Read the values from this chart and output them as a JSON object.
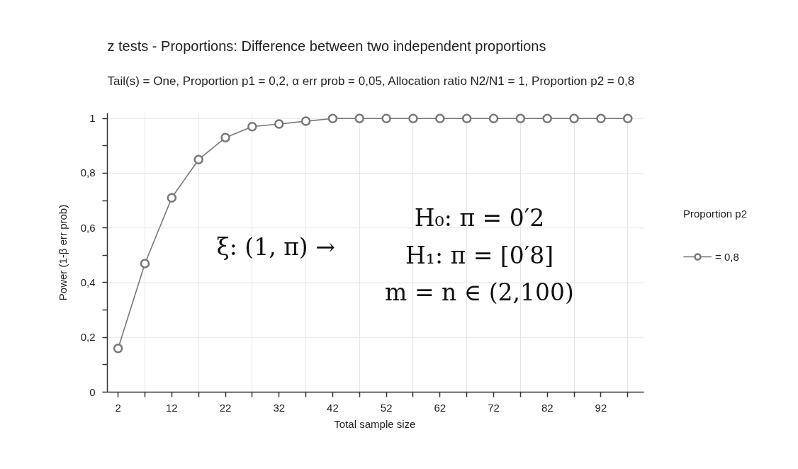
{
  "chart_data": {
    "type": "line",
    "title": "z tests - Proportions: Difference between two independent proportions",
    "subtitle": "Tail(s) = One, Proportion p1 = 0,2, α err prob = 0,05, Allocation ratio N2/N1 = 1, Proportion p2 = 0,8",
    "xlabel": "Total sample size",
    "ylabel": "Power (1-β err prob)",
    "legend_title": "Proportion p2",
    "annotations": [
      "ξ: (1, π) →",
      "H₀: π = 0′2",
      "H₁: π = [0′8]",
      "m = n ∈ (2,100)"
    ],
    "x": [
      2,
      7,
      12,
      17,
      22,
      27,
      32,
      37,
      42,
      47,
      52,
      57,
      62,
      67,
      72,
      77,
      82,
      87,
      92,
      97
    ],
    "series": [
      {
        "name": "= 0,8",
        "color": "#777777",
        "values": [
          0.16,
          0.47,
          0.71,
          0.85,
          0.93,
          0.97,
          0.98,
          0.99,
          1,
          1,
          1,
          1,
          1,
          1,
          1,
          1,
          1,
          1,
          1,
          1
        ]
      }
    ],
    "xlim": [
      0,
      100
    ],
    "xticks": [
      2,
      {
        "value": 7,
        "label": null
      },
      12,
      {
        "value": 17,
        "label": null
      },
      22,
      {
        "value": 27,
        "label": null
      },
      32,
      {
        "value": 37,
        "label": null
      },
      42,
      {
        "value": 47,
        "label": null
      },
      52,
      {
        "value": 57,
        "label": null
      },
      62,
      {
        "value": 67,
        "label": null
      },
      72,
      {
        "value": 77,
        "label": null
      },
      82,
      {
        "value": 87,
        "label": null
      },
      92,
      {
        "value": 97,
        "label": null
      }
    ],
    "ylim": [
      0,
      1.02
    ],
    "yticks": [
      0,
      {
        "value": 0.1,
        "label": null
      },
      {
        "value": 0.2,
        "label": "0,2"
      },
      {
        "value": 0.3,
        "label": null
      },
      {
        "value": 0.4,
        "label": "0,4"
      },
      {
        "value": 0.5,
        "label": null
      },
      {
        "value": 0.6,
        "label": "0,6"
      },
      {
        "value": 0.7,
        "label": null
      },
      {
        "value": 0.8,
        "label": "0,8"
      },
      {
        "value": 0.9,
        "label": null
      },
      1
    ],
    "grid": true,
    "legend": "right",
    "marker": "circle",
    "line_style": "solid"
  }
}
